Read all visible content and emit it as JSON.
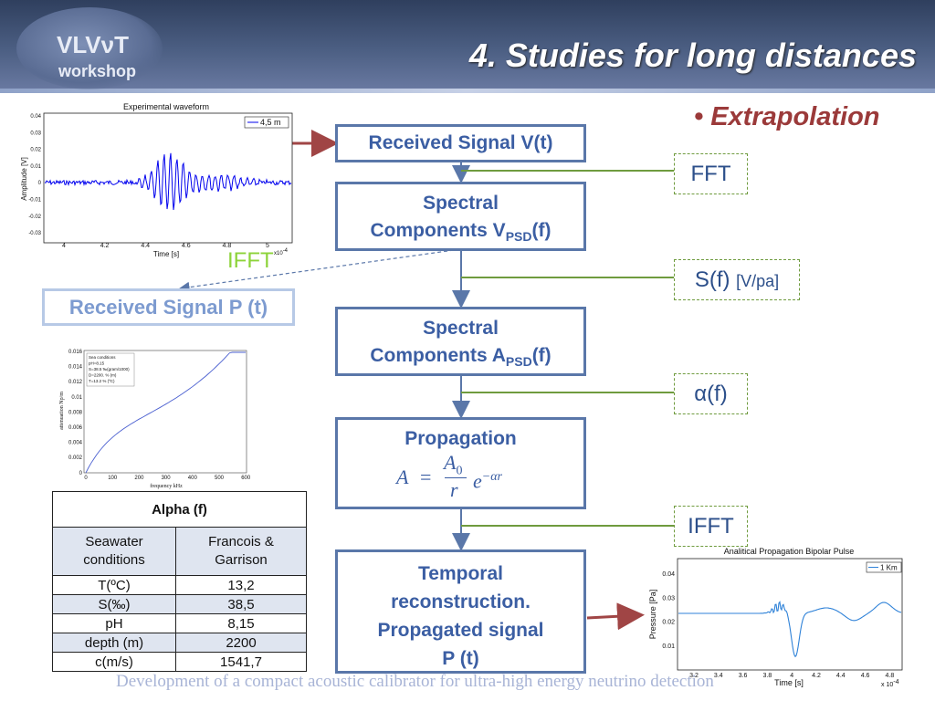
{
  "header": {
    "logo_main": "VLVνT",
    "logo_sub": "workshop",
    "title": "4.  Studies for long distances"
  },
  "bullet": "•  Extrapolation",
  "flow": {
    "box1": "Received Signal  V(t)",
    "box2_line1": "Spectral",
    "box2_line2": "Components  V",
    "box2_sub": "PSD",
    "box2_tail": "(f)",
    "box3_line1": "Spectral",
    "box3_line2": "Components  A",
    "box3_sub": "PSD",
    "box3_tail": "(f)",
    "box4_title": "Propagation",
    "box4_lhs": "A",
    "box4_eq": "=",
    "box4_num": "A",
    "box4_num_sub": "0",
    "box4_den": "r",
    "box4_exp_base": "e",
    "box4_exp": "−αr",
    "box5_line1": "Temporal",
    "box5_line2": "reconstruction.",
    "box5_line3": "Propagated signal",
    "box5_line4": "P (t)"
  },
  "notes": {
    "fft": "FFT",
    "sf": "S(f)",
    "sf_unit": "[V/pa]",
    "alpha": "α(f)",
    "ifft": "IFFT"
  },
  "ifft_left": "IFFT",
  "received_p": "Received Signal P (t)",
  "waveform": {
    "title": "Experimental waveform",
    "xlabel": "Time [s]",
    "ylabel": "Amplitude [V]",
    "legend": "4,5 m",
    "x_exp": "x10",
    "x_exp_pow": "-4",
    "xticks": [
      "4",
      "4.2",
      "4.4",
      "4.6",
      "4.8",
      "5"
    ],
    "yticks": [
      "0.04",
      "0.03",
      "0.02",
      "0.01",
      "0",
      "-0.01",
      "-0.02",
      "-0.03"
    ]
  },
  "attenuation": {
    "ylabel": "attenuation Np/m",
    "xlabel": "frequency kHz",
    "xticks": [
      "0",
      "100",
      "200",
      "300",
      "400",
      "500",
      "600"
    ],
    "yticks": [
      "0.016",
      "0.014",
      "0.012",
      "0.01",
      "0.008",
      "0.006",
      "0.004",
      "0.002",
      "0"
    ],
    "legend_lines": [
      "Sea conditions",
      "pH=8.15",
      "S=38.5 ‰(gram/1000)",
      "D=2200. % (m)",
      "T=13.2 % (ºC)"
    ]
  },
  "table": {
    "title": "Alpha (f)",
    "col1": "Seawater conditions",
    "col2": "Francois & Garrison",
    "rows": [
      {
        "param": "T(ºC)",
        "value": "13,2"
      },
      {
        "param": "S(‰)",
        "value": "38,5"
      },
      {
        "param": "pH",
        "value": "8,15"
      },
      {
        "param": "depth (m)",
        "value": "2200"
      },
      {
        "param": "c(m/s)",
        "value": "1541,7"
      }
    ]
  },
  "bipolar": {
    "title": "Analitical Propagation Bipolar Pulse",
    "ylabel": "Pressure [Pa]",
    "xlabel": "Time [s]",
    "legend": "1 Km",
    "x_exp": "x 10",
    "x_exp_pow": "-4",
    "xticks": [
      "3.2",
      "3.4",
      "3.6",
      "3.8",
      "4",
      "4.2",
      "4.4",
      "4.6",
      "4.8"
    ],
    "yticks": [
      "0.04",
      "0.03",
      "0.02",
      "0.01"
    ]
  },
  "footer": "Development of a compact acoustic calibrator for ultra-high energy neutrino detection",
  "colors": {
    "flow_border": "#5a77a9",
    "flow_text": "#3b5ea3",
    "arrow_red": "#a04545",
    "note_green": "#6f9b3e",
    "bullet": "#9b3a3a",
    "series_blue": "#0000ee"
  }
}
